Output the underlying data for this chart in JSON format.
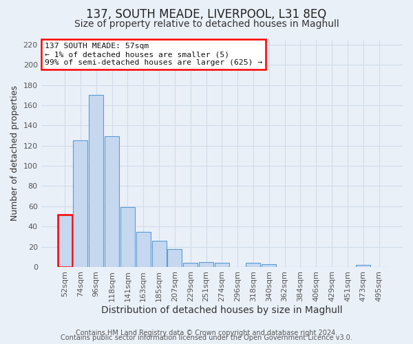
{
  "title": "137, SOUTH MEADE, LIVERPOOL, L31 8EQ",
  "subtitle": "Size of property relative to detached houses in Maghull",
  "xlabel": "Distribution of detached houses by size in Maghull",
  "ylabel": "Number of detached properties",
  "bin_labels": [
    "52sqm",
    "74sqm",
    "96sqm",
    "118sqm",
    "141sqm",
    "163sqm",
    "185sqm",
    "207sqm",
    "229sqm",
    "251sqm",
    "274sqm",
    "296sqm",
    "318sqm",
    "340sqm",
    "362sqm",
    "384sqm",
    "406sqm",
    "429sqm",
    "451sqm",
    "473sqm",
    "495sqm"
  ],
  "bar_heights": [
    52,
    125,
    170,
    129,
    59,
    35,
    26,
    18,
    4,
    5,
    4,
    0,
    4,
    3,
    0,
    0,
    0,
    0,
    0,
    2,
    0
  ],
  "bar_color": "#c5d8f0",
  "bar_edge_color": "#5b9bd5",
  "highlight_bar_index": 0,
  "highlight_color": "#ff0000",
  "annotation_line1": "137 SOUTH MEADE: 57sqm",
  "annotation_line2": "← 1% of detached houses are smaller (5)",
  "annotation_line3": "99% of semi-detached houses are larger (625) →",
  "ylim": [
    0,
    225
  ],
  "yticks": [
    0,
    20,
    40,
    60,
    80,
    100,
    120,
    140,
    160,
    180,
    200,
    220
  ],
  "grid_color": "#d0dce8",
  "background_color": "#eaf0f8",
  "footer_line1": "Contains HM Land Registry data © Crown copyright and database right 2024.",
  "footer_line2": "Contains public sector information licensed under the Open Government Licence v3.0.",
  "title_fontsize": 12,
  "subtitle_fontsize": 10,
  "xlabel_fontsize": 10,
  "ylabel_fontsize": 9,
  "tick_fontsize": 8,
  "footer_fontsize": 7
}
